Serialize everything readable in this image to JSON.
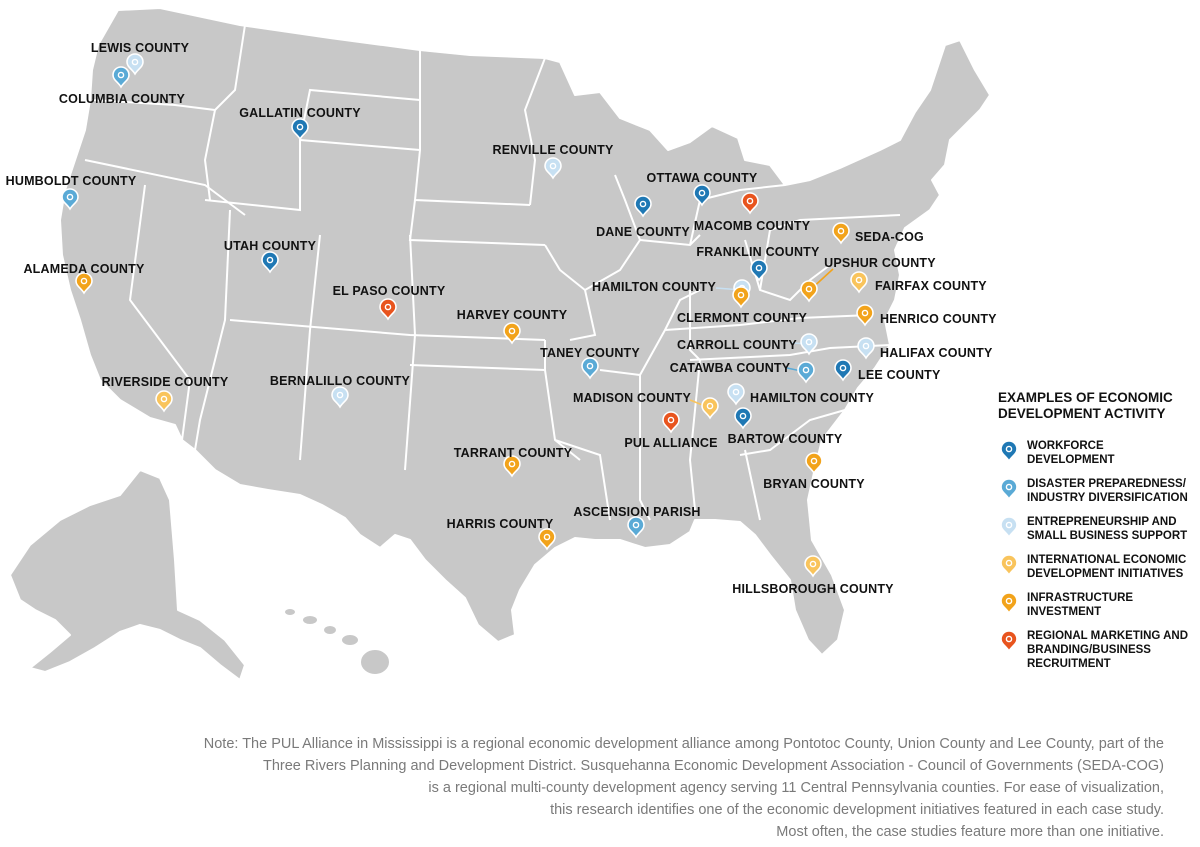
{
  "legend": {
    "title": "EXAMPLES OF ECONOMIC\nDEVELOPMENT ACTIVITY",
    "categories": [
      {
        "id": "workforce",
        "label": "WORKFORCE\nDEVELOPMENT",
        "color": "#1f78b4"
      },
      {
        "id": "disaster",
        "label": "DISASTER PREPAREDNESS/\nINDUSTRY DIVERSIFICATION",
        "color": "#5aaad6"
      },
      {
        "id": "entrepreneurship",
        "label": "ENTREPRENEURSHIP AND\nSMALL BUSINESS SUPPORT",
        "color": "#c7e0f2"
      },
      {
        "id": "international",
        "label": "INTERNATIONAL ECONOMIC\nDEVELOPMENT INITIATIVES",
        "color": "#f9c45c"
      },
      {
        "id": "infrastructure",
        "label": "INFRASTRUCTURE\nINVESTMENT",
        "color": "#f2a31b"
      },
      {
        "id": "marketing",
        "label": "REGIONAL MARKETING AND\nBRANDING/BUSINESS\nRECRUITMENT",
        "color": "#e8541e"
      }
    ]
  },
  "markers": [
    {
      "name": "LEWIS COUNTY",
      "category": "entrepreneurship"
    },
    {
      "name": "COLUMBIA COUNTY",
      "category": "disaster"
    },
    {
      "name": "GALLATIN COUNTY",
      "category": "workforce"
    },
    {
      "name": "HUMBOLDT COUNTY",
      "category": "disaster"
    },
    {
      "name": "RENVILLE COUNTY",
      "category": "entrepreneurship"
    },
    {
      "name": "OTTAWA COUNTY",
      "category": "workforce"
    },
    {
      "name": "DANE COUNTY",
      "category": "workforce"
    },
    {
      "name": "MACOMB COUNTY",
      "category": "marketing"
    },
    {
      "name": "SEDA-COG",
      "category": "infrastructure"
    },
    {
      "name": "UTAH COUNTY",
      "category": "workforce"
    },
    {
      "name": "ALAMEDA COUNTY",
      "category": "infrastructure"
    },
    {
      "name": "EL PASO COUNTY",
      "category": "marketing"
    },
    {
      "name": "FRANKLIN COUNTY",
      "category": "workforce"
    },
    {
      "name": "UPSHUR COUNTY",
      "category": "infrastructure"
    },
    {
      "name": "FAIRFAX COUNTY",
      "category": "international"
    },
    {
      "name": "HAMILTON COUNTY",
      "category": "entrepreneurship"
    },
    {
      "name": "CLERMONT COUNTY",
      "category": "infrastructure"
    },
    {
      "name": "HENRICO COUNTY",
      "category": "infrastructure"
    },
    {
      "name": "HARVEY COUNTY",
      "category": "infrastructure"
    },
    {
      "name": "CARROLL COUNTY",
      "category": "entrepreneurship"
    },
    {
      "name": "HALIFAX COUNTY",
      "category": "entrepreneurship"
    },
    {
      "name": "TANEY COUNTY",
      "category": "disaster"
    },
    {
      "name": "CATAWBA COUNTY",
      "category": "disaster"
    },
    {
      "name": "LEE COUNTY",
      "category": "workforce"
    },
    {
      "name": "RIVERSIDE COUNTY",
      "category": "international"
    },
    {
      "name": "BERNALILLO COUNTY",
      "category": "entrepreneurship"
    },
    {
      "name": "MADISON COUNTY",
      "category": "international"
    },
    {
      "name": "HAMILTON COUNTY",
      "category": "entrepreneurship"
    },
    {
      "name": "PUL ALLIANCE",
      "category": "marketing"
    },
    {
      "name": "BARTOW COUNTY",
      "category": "workforce"
    },
    {
      "name": "TARRANT COUNTY",
      "category": "infrastructure"
    },
    {
      "name": "BRYAN COUNTY",
      "category": "infrastructure"
    },
    {
      "name": "ASCENSION PARISH",
      "category": "disaster"
    },
    {
      "name": "HARRIS COUNTY",
      "category": "infrastructure"
    },
    {
      "name": "HILLSBOROUGH COUNTY",
      "category": "international"
    }
  ],
  "note": [
    "Note: The PUL Alliance in Mississippi is a regional economic development alliance among Pontotoc County, Union County and Lee County, part of the",
    "Three Rivers Planning and Development District.  Susquehanna Economic Development Association - Council of Governments (SEDA-COG)",
    "is a regional multi-county development agency serving 11 Central Pennsylvania counties. For ease of visualization,",
    "this research identifies one of the economic development initiatives featured in each case study.",
    "Most often, the case studies feature more than one initiative."
  ]
}
